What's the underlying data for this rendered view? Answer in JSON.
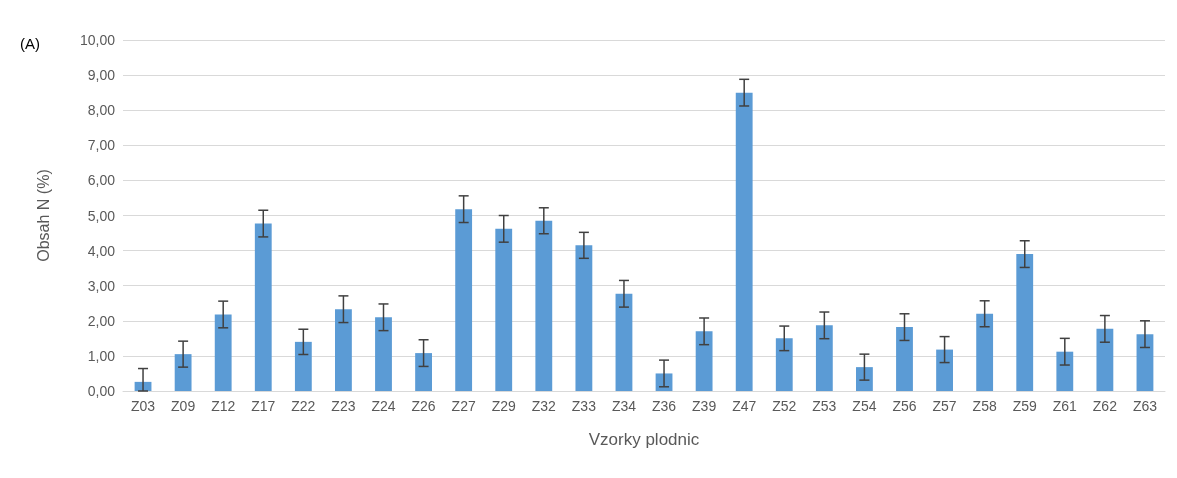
{
  "chart_data": {
    "type": "bar",
    "xlabel": "Vzorky plodnic",
    "ylabel": "Obsah N (%)",
    "annotations": [
      "(A)"
    ],
    "categories": [
      "Z03",
      "Z09",
      "Z12",
      "Z17",
      "Z22",
      "Z23",
      "Z24",
      "Z26",
      "Z27",
      "Z29",
      "Z32",
      "Z33",
      "Z34",
      "Z36",
      "Z39",
      "Z47",
      "Z52",
      "Z53",
      "Z54",
      "Z56",
      "Z57",
      "Z58",
      "Z59",
      "Z61",
      "Z62",
      "Z63"
    ],
    "values": [
      0.26,
      1.05,
      2.18,
      4.77,
      1.4,
      2.33,
      2.1,
      1.08,
      5.18,
      4.62,
      4.85,
      4.15,
      2.77,
      0.5,
      1.7,
      8.5,
      1.5,
      1.87,
      0.68,
      1.82,
      1.18,
      2.2,
      3.9,
      1.12,
      1.77,
      1.62
    ],
    "errors": [
      [
        0,
        0.64
      ],
      0.37,
      0.38,
      0.38,
      0.36,
      0.38,
      0.38,
      0.38,
      0.38,
      0.38,
      0.37,
      0.37,
      0.38,
      0.38,
      0.38,
      0.38,
      0.35,
      0.38,
      0.37,
      0.38,
      0.37,
      0.37,
      0.38,
      0.38,
      0.38,
      0.38
    ],
    "color": "#5b9bd5",
    "ylim": [
      0,
      10
    ],
    "yticks": [
      {
        "value": 0,
        "label": "0,00"
      },
      {
        "value": 1,
        "label": "1,00"
      },
      {
        "value": 2,
        "label": "2,00"
      },
      {
        "value": 3,
        "label": "3,00"
      },
      {
        "value": 4,
        "label": "4,00"
      },
      {
        "value": 5,
        "label": "5,00"
      },
      {
        "value": 6,
        "label": "6,00"
      },
      {
        "value": 7,
        "label": "7,00"
      },
      {
        "value": 8,
        "label": "8,00"
      },
      {
        "value": 9,
        "label": "9,00"
      },
      {
        "value": 10,
        "label": "10,00"
      }
    ],
    "grid": "y"
  }
}
